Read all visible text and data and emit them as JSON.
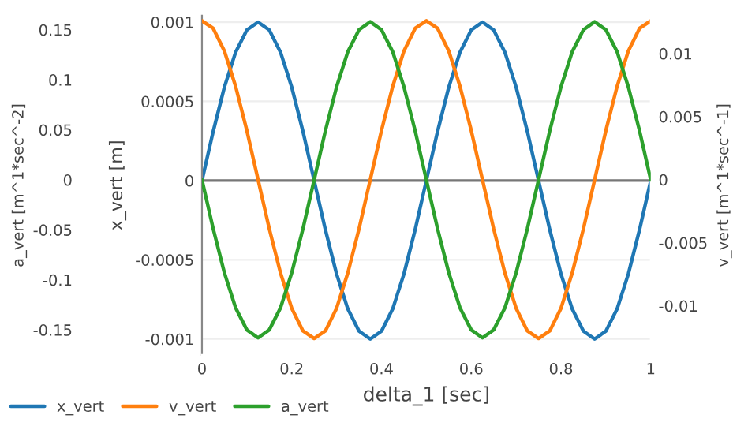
{
  "chart_data": {
    "type": "line",
    "xlabel": "delta_1 [sec]",
    "ylabel": "x_vert [m]",
    "y2label": "v_vert [m^1*sec^-1]",
    "y3label": "a_vert [m^1*sec^-2]",
    "x": [
      0,
      0.025,
      0.05,
      0.075,
      0.1,
      0.125,
      0.15,
      0.175,
      0.2,
      0.225,
      0.25,
      0.275,
      0.3,
      0.325,
      0.35,
      0.375,
      0.4,
      0.425,
      0.45,
      0.475,
      0.5,
      0.525,
      0.55,
      0.575,
      0.6,
      0.625,
      0.65,
      0.675,
      0.7,
      0.725,
      0.75,
      0.775,
      0.8,
      0.825,
      0.85,
      0.875,
      0.9,
      0.925,
      0.95,
      0.975,
      1
    ],
    "series": [
      {
        "name": "x_vert",
        "color": "#1f77b4",
        "values": [
          0,
          0.00031,
          0.00059,
          0.00081,
          0.00095,
          0.001,
          0.00095,
          0.00081,
          0.00059,
          0.00031,
          0,
          -0.00031,
          -0.00059,
          -0.00081,
          -0.00095,
          -0.001,
          -0.00095,
          -0.00081,
          -0.00059,
          -0.00031,
          0,
          0.00031,
          0.00059,
          0.00081,
          0.00095,
          0.001,
          0.00095,
          0.00081,
          0.00059,
          0.00031,
          0,
          -0.00031,
          -0.00059,
          -0.00081,
          -0.00095,
          -0.001,
          -0.00095,
          -0.00081,
          -0.00059,
          -0.00031,
          0
        ]
      },
      {
        "name": "v_vert",
        "color": "#ff7f0e",
        "axis": "y2",
        "values": [
          0.0126,
          0.012,
          0.0102,
          0.0074,
          0.0039,
          0,
          -0.0039,
          -0.0074,
          -0.0102,
          -0.012,
          -0.0126,
          -0.012,
          -0.0102,
          -0.0074,
          -0.0039,
          0,
          0.0039,
          0.0074,
          0.0102,
          0.012,
          0.0126,
          0.012,
          0.0102,
          0.0074,
          0.0039,
          0,
          -0.0039,
          -0.0074,
          -0.0102,
          -0.012,
          -0.0126,
          -0.012,
          -0.0102,
          -0.0074,
          -0.0039,
          0,
          0.0039,
          0.0074,
          0.0102,
          0.012,
          0.0126
        ]
      },
      {
        "name": "a_vert",
        "color": "#2ca02c",
        "axis": "y3",
        "values": [
          0,
          -0.049,
          -0.093,
          -0.128,
          -0.15,
          -0.158,
          -0.15,
          -0.128,
          -0.093,
          -0.049,
          0,
          0.049,
          0.093,
          0.128,
          0.15,
          0.158,
          0.15,
          0.128,
          0.093,
          0.049,
          0,
          -0.049,
          -0.093,
          -0.128,
          -0.15,
          -0.158,
          -0.15,
          -0.128,
          -0.093,
          -0.049,
          0,
          0.049,
          0.093,
          0.128,
          0.15,
          0.158,
          0.15,
          0.128,
          0.093,
          0.049,
          0
        ]
      }
    ],
    "xlim": [
      0,
      1
    ],
    "xticks": [
      0,
      0.2,
      0.4,
      0.6,
      0.8,
      1
    ],
    "ylim": [
      -0.0011,
      0.00104
    ],
    "yticks": [
      -0.001,
      -0.0005,
      0,
      0.0005,
      0.001
    ],
    "y2lim": [
      -0.0139,
      0.013
    ],
    "y2ticks": [
      -0.01,
      -0.005,
      0,
      0.005,
      0.01
    ],
    "y3lim": [
      -0.175,
      0.164
    ],
    "y3ticks": [
      -0.15,
      -0.1,
      -0.05,
      0,
      0.05,
      0.1,
      0.15
    ],
    "ref_lines": [
      {
        "axis": "y",
        "value": 0,
        "color": "#777777"
      }
    ],
    "grid": "y",
    "legend": "bottom left",
    "marker": "none",
    "line_style": "solid"
  }
}
